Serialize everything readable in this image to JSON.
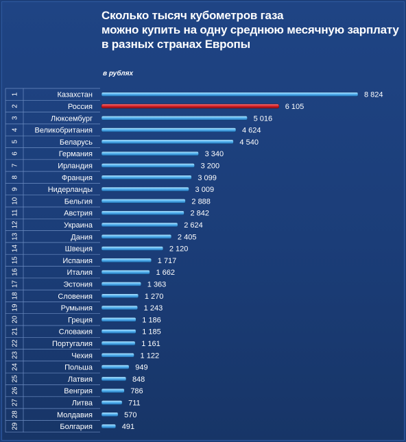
{
  "title_lines": [
    "Сколько тысяч кубометров газа",
    "можно купить на одну среднюю месячную зарплату",
    "в разных странах Европы"
  ],
  "unit_label": "в рублях",
  "colors": {
    "bar": "#4fb3f0",
    "highlight_bar": "#d8222a",
    "text": "#ffffff",
    "background": "#1d3f7a"
  },
  "chart_data": {
    "type": "bar",
    "orientation": "horizontal",
    "title": "Сколько тысяч кубометров газа можно купить на одну среднюю месячную зарплату в разных странах Европы",
    "unit": "в рублях",
    "highlight": "Россия",
    "grid": false,
    "legend": "none",
    "ranks": [
      "1",
      "2",
      "3",
      "4",
      "5",
      "6",
      "7",
      "8",
      "9",
      "10",
      "11",
      "12",
      "13",
      "14",
      "15",
      "16",
      "17",
      "18",
      "19",
      "20",
      "21",
      "22",
      "23",
      "24",
      "25",
      "26",
      "27",
      "28",
      "29"
    ],
    "categories": [
      "Казахстан",
      "Россия",
      "Люксембург",
      "Великобритания",
      "Беларусь",
      "Германия",
      "Ирландия",
      "Франция",
      "Нидерланды",
      "Бельгия",
      "Австрия",
      "Украина",
      "Дания",
      "Швеция",
      "Испания",
      "Италия",
      "Эстония",
      "Словения",
      "Румыния",
      "Греция",
      "Словакия",
      "Португалия",
      "Чехия",
      "Польша",
      "Латвия",
      "Венгрия",
      "Литва",
      "Молдавия",
      "Болгария"
    ],
    "values": [
      8824,
      6105,
      5016,
      4624,
      4540,
      3340,
      3200,
      3099,
      3009,
      2888,
      2842,
      2624,
      2405,
      2120,
      1717,
      1662,
      1363,
      1270,
      1243,
      1186,
      1185,
      1161,
      1122,
      949,
      848,
      786,
      711,
      570,
      491
    ],
    "value_labels": [
      "8 824",
      "6 105",
      "5 016",
      "4 624",
      "4 540",
      "3 340",
      "3 200",
      "3 099",
      "3 009",
      "2 888",
      "2 842",
      "2 624",
      "2 405",
      "2 120",
      "1 717",
      "1 662",
      "1 363",
      "1 270",
      "1 243",
      "1 186",
      "1 185",
      "1 161",
      "1 122",
      "949",
      "848",
      "786",
      "711",
      "570",
      "491"
    ],
    "xlim": [
      0,
      8824
    ]
  }
}
